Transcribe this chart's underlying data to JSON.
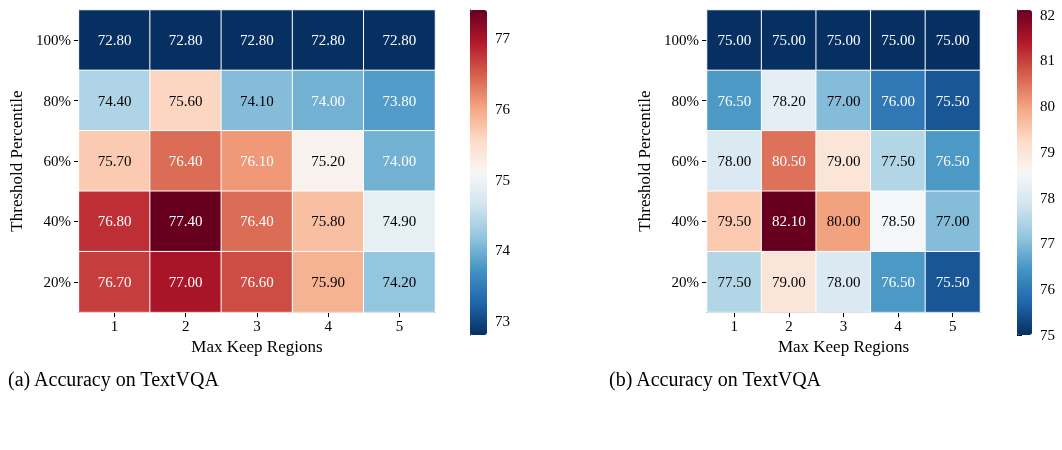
{
  "chart_data": [
    {
      "type": "heatmap",
      "xlabel": "Max Keep Regions",
      "ylabel": "Threshold Percentile",
      "categories": [
        "1",
        "2",
        "3",
        "4",
        "5"
      ],
      "y_categories": [
        "100%",
        "80%",
        "60%",
        "40%",
        "20%"
      ],
      "cells": [
        [
          72.8,
          72.8,
          72.8,
          72.8,
          72.8
        ],
        [
          74.4,
          75.6,
          74.1,
          74.0,
          73.8
        ],
        [
          75.7,
          76.4,
          76.1,
          75.2,
          74.0
        ],
        [
          76.8,
          77.4,
          76.4,
          75.8,
          74.9
        ],
        [
          76.7,
          77.0,
          76.6,
          75.9,
          74.2
        ]
      ],
      "cell_labels": [
        [
          "72.80",
          "72.80",
          "72.80",
          "72.80",
          "72.80"
        ],
        [
          "74.40",
          "75.60",
          "74.10",
          "74.00",
          "73.80"
        ],
        [
          "75.70",
          "76.40",
          "76.10",
          "75.20",
          "74.00"
        ],
        [
          "76.80",
          "77.40",
          "76.40",
          "75.80",
          "74.90"
        ],
        [
          "76.70",
          "77.00",
          "76.60",
          "75.90",
          "74.20"
        ]
      ],
      "clim": [
        72.8,
        77.4
      ],
      "cticks": [
        73,
        74,
        75,
        76,
        77
      ],
      "annotations": [
        "(a) Accuracy on TextVQA"
      ]
    },
    {
      "type": "heatmap",
      "xlabel": "Max Keep Regions",
      "ylabel": "Threshold Percentile",
      "categories": [
        "1",
        "2",
        "3",
        "4",
        "5"
      ],
      "y_categories": [
        "100%",
        "80%",
        "60%",
        "40%",
        "20%"
      ],
      "cells": [
        [
          75.0,
          75.0,
          75.0,
          75.0,
          75.0
        ],
        [
          76.5,
          78.2,
          77.0,
          76.0,
          75.5
        ],
        [
          78.0,
          80.5,
          79.0,
          77.5,
          76.5
        ],
        [
          79.5,
          82.1,
          80.0,
          78.5,
          77.0
        ],
        [
          77.5,
          79.0,
          78.0,
          76.5,
          75.5
        ]
      ],
      "cell_labels": [
        [
          "75.00",
          "75.00",
          "75.00",
          "75.00",
          "75.00"
        ],
        [
          "76.50",
          "78.20",
          "77.00",
          "76.00",
          "75.50"
        ],
        [
          "78.00",
          "80.50",
          "79.00",
          "77.50",
          "76.50"
        ],
        [
          "79.50",
          "82.10",
          "80.00",
          "78.50",
          "77.00"
        ],
        [
          "77.50",
          "79.00",
          "78.00",
          "76.50",
          "75.50"
        ]
      ],
      "clim": [
        75,
        82.1
      ],
      "cticks": [
        75,
        76,
        77,
        78,
        79,
        80,
        81,
        82
      ],
      "annotations": [
        "(b) Accuracy on TextVQA"
      ]
    }
  ]
}
